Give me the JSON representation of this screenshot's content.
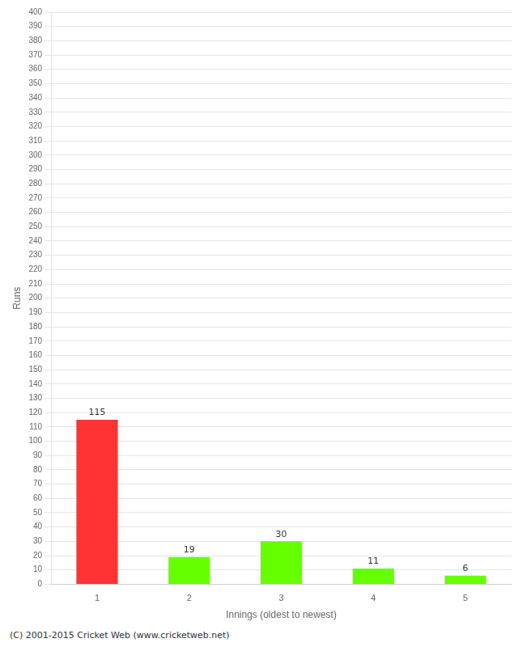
{
  "chart_data": {
    "type": "bar",
    "xlabel": "Innings (oldest to newest)",
    "ylabel": "Runs",
    "annotations": [
      "(C) 2001-2015 Cricket Web (www.cricketweb.net)"
    ],
    "categories": [
      "1",
      "2",
      "3",
      "4",
      "5"
    ],
    "values": [
      115,
      19,
      30,
      11,
      6
    ],
    "colors": [
      "#ff3333",
      "#66ff00",
      "#66ff00",
      "#66ff00",
      "#66ff00"
    ],
    "ylim": [
      0,
      400
    ],
    "yticks": [
      0,
      10,
      20,
      30,
      40,
      50,
      60,
      70,
      80,
      90,
      100,
      110,
      120,
      130,
      140,
      150,
      160,
      170,
      180,
      190,
      200,
      210,
      220,
      230,
      240,
      250,
      260,
      270,
      280,
      290,
      300,
      310,
      320,
      330,
      340,
      350,
      360,
      370,
      380,
      390,
      400
    ],
    "grid": true,
    "data_labels": true
  }
}
